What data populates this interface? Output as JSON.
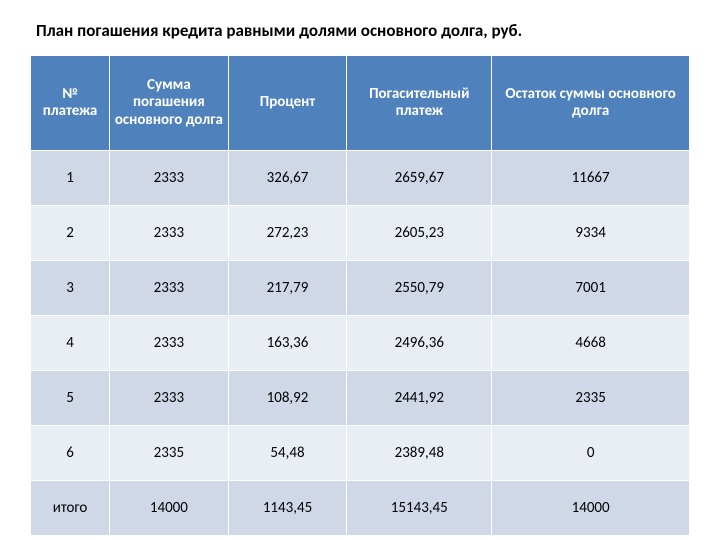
{
  "title": "План погашения кредита равными долями основного долга, руб.",
  "table": {
    "headers": [
      "№ платежа",
      "Сумма погашения основного долга",
      "Процент",
      "Погасительный платеж",
      "Остаток суммы основного долга"
    ],
    "rows": [
      [
        "1",
        "2333",
        "326,67",
        "2659,67",
        "11667"
      ],
      [
        "2",
        "2333",
        "272,23",
        "2605,23",
        "9334"
      ],
      [
        "3",
        "2333",
        "217,79",
        "2550,79",
        "7001"
      ],
      [
        "4",
        "2333",
        "163,36",
        "2496,36",
        "4668"
      ],
      [
        "5",
        "2333",
        "108,92",
        "2441,92",
        "2335"
      ],
      [
        "6",
        "2335",
        "54,48",
        "2389,48",
        "0"
      ],
      [
        "итого",
        "14000",
        "1143,45",
        "15143,45",
        "14000"
      ]
    ],
    "header_bg": "#4f81bd",
    "header_fg": "#ffffff",
    "band_a": "#d0d8e8",
    "band_b": "#e9edf4",
    "border_color": "#ffffff",
    "font_family": "Calibri",
    "title_fontsize": 17,
    "cell_fontsize": 15,
    "col_widths_pct": [
      12,
      18,
      18,
      22,
      30
    ]
  }
}
